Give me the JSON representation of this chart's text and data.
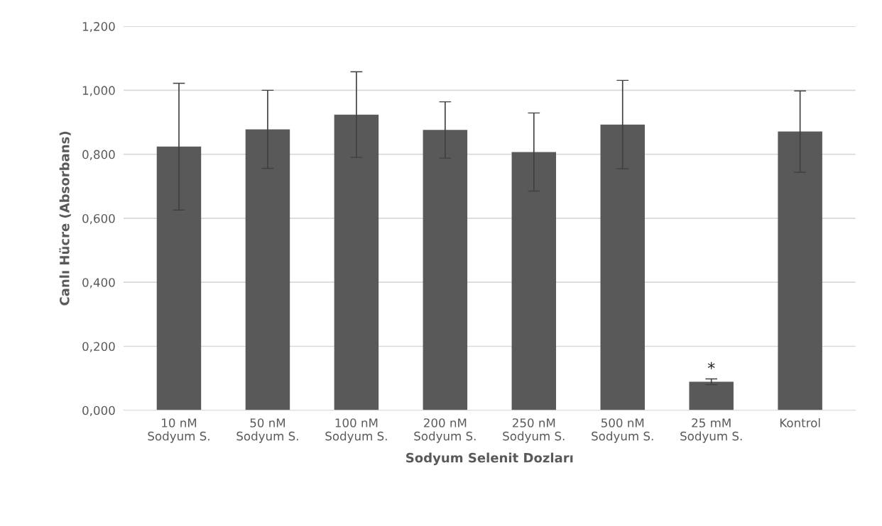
{
  "chart_data": {
    "type": "bar",
    "xlabel": "Sodyum Selenit Dozları",
    "ylabel": "Canlı Hücre (Absorbans)",
    "categories": [
      "10 nM\nSodyum S.",
      "50 nM\nSodyum S.",
      "100 nM\nSodyum S.",
      "200 nM\nSodyum S.",
      "250 nM\nSodyum S.",
      "500 nM\nSodyum S.",
      "25 mM\nSodyum S.",
      "Kontrol"
    ],
    "values": [
      0.824,
      0.878,
      0.924,
      0.876,
      0.807,
      0.893,
      0.089,
      0.871
    ],
    "errors": [
      0.198,
      0.122,
      0.134,
      0.088,
      0.122,
      0.138,
      0.009,
      0.127
    ],
    "color": "#595959",
    "ylim": [
      0,
      1.2
    ],
    "yticks": [
      {
        "value": 0,
        "label": "0,000"
      },
      {
        "value": 0.2,
        "label": "0,200"
      },
      {
        "value": 0.4,
        "label": "0,400"
      },
      {
        "value": 0.6,
        "label": "0,600"
      },
      {
        "value": 0.8,
        "label": "0,800"
      },
      {
        "value": 1.0,
        "label": "1,000"
      },
      {
        "value": 1.2,
        "label": "1,200"
      }
    ],
    "grid": "y",
    "annotations": [
      {
        "text": "*",
        "x": "25 mM\nSodyum S.",
        "y": 0.098
      }
    ]
  }
}
